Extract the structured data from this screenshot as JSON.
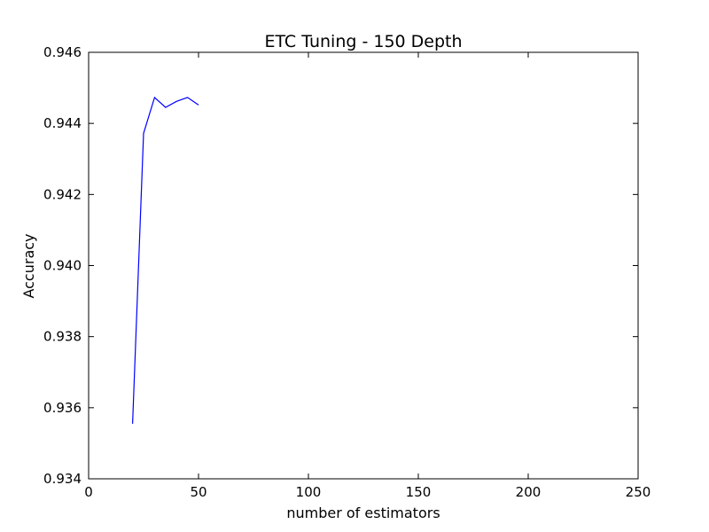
{
  "chart_data": {
    "type": "line",
    "title": "ETC Tuning - 150 Depth",
    "xlabel": "number of estimators",
    "ylabel": "Accuracy",
    "xlim": [
      0,
      250
    ],
    "ylim": [
      0.934,
      0.946
    ],
    "xticks": [
      0,
      50,
      100,
      150,
      200,
      250
    ],
    "xtick_labels": [
      "0",
      "50",
      "100",
      "150",
      "200",
      "250"
    ],
    "yticks": [
      0.934,
      0.936,
      0.938,
      0.94,
      0.942,
      0.944,
      0.946
    ],
    "ytick_labels": [
      "0.934",
      "0.936",
      "0.938",
      "0.940",
      "0.942",
      "0.944",
      "0.946"
    ],
    "grid": false,
    "series": [
      {
        "color": "#0000ff",
        "x": [
          20,
          25,
          30,
          35,
          40,
          45,
          50
        ],
        "y": [
          0.93555,
          0.94372,
          0.94473,
          0.94445,
          0.94462,
          0.94473,
          0.94452
        ]
      }
    ]
  }
}
